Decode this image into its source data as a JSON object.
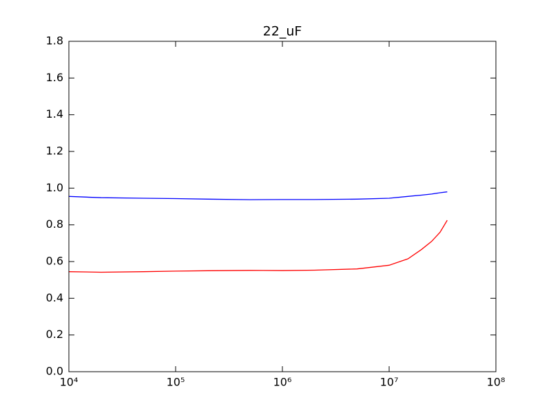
{
  "chart_data": {
    "type": "line",
    "title": "22_uF",
    "x": [
      10000,
      20000,
      50000,
      100000,
      200000,
      500000,
      1000000,
      2000000,
      5000000,
      10000000,
      15000000,
      20000000,
      25000000,
      30000000,
      35000000
    ],
    "series": [
      {
        "color": "#0000ff",
        "values": [
          0.955,
          0.948,
          0.945,
          0.943,
          0.94,
          0.937,
          0.938,
          0.938,
          0.94,
          0.945,
          0.955,
          0.962,
          0.968,
          0.975,
          0.98
        ]
      },
      {
        "color": "#ff0000",
        "values": [
          0.545,
          0.542,
          0.545,
          0.548,
          0.55,
          0.552,
          0.551,
          0.553,
          0.56,
          0.58,
          0.615,
          0.665,
          0.71,
          0.76,
          0.825
        ]
      }
    ],
    "xscale": "log",
    "xlim": [
      10000,
      100000000
    ],
    "xticks": [
      {
        "value": 10000,
        "label": "10⁴"
      },
      {
        "value": 100000,
        "label": "10⁵"
      },
      {
        "value": 1000000,
        "label": "10⁶"
      },
      {
        "value": 10000000,
        "label": "10⁷"
      },
      {
        "value": 100000000,
        "label": "10⁸"
      }
    ],
    "ylim": [
      0,
      1.8
    ],
    "yticks": [
      {
        "value": 0,
        "label": "0.0"
      },
      {
        "value": 0.2,
        "label": "0.2"
      },
      {
        "value": 0.4,
        "label": "0.4"
      },
      {
        "value": 0.6,
        "label": "0.6"
      },
      {
        "value": 0.8,
        "label": "0.8"
      },
      {
        "value": 1,
        "label": "1.0"
      },
      {
        "value": 1.2,
        "label": "1.2"
      },
      {
        "value": 1.4,
        "label": "1.4"
      },
      {
        "value": 1.6,
        "label": "1.6"
      },
      {
        "value": 1.8,
        "label": "1.8"
      }
    ],
    "grid": false
  }
}
